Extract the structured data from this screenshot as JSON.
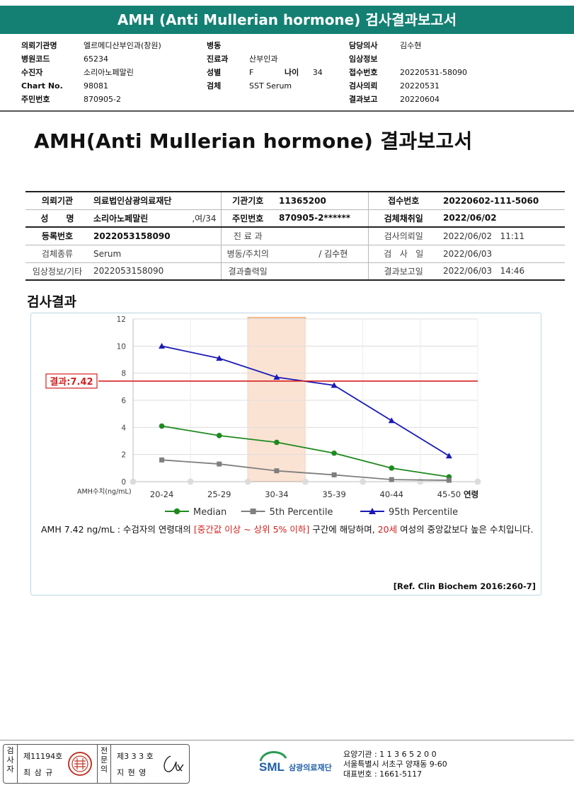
{
  "banner_title": "AMH (Anti Mullerian hormone) 검사결과보고서",
  "header": {
    "col1": [
      {
        "k": "의뢰기관명",
        "v": "엘르메디산부인과(창원)"
      },
      {
        "k": "병원코드",
        "v": "65234"
      },
      {
        "k": "수진자",
        "v": "소리아노페말린"
      },
      {
        "k": "Chart No.",
        "v": "98081"
      },
      {
        "k": "주민번호",
        "v": "870905-2"
      }
    ],
    "col2": [
      {
        "k": "병동",
        "v": ""
      },
      {
        "k": "진료과",
        "v": "산부인과"
      },
      {
        "k": "성별",
        "v": "F"
      },
      {
        "k": "검체",
        "v": "SST Serum"
      }
    ],
    "age_label": "나이",
    "age_value": "34",
    "col3": [
      {
        "k": "담당의사",
        "v": "김수현"
      },
      {
        "k": "임상정보",
        "v": ""
      },
      {
        "k": "접수번호",
        "v": "20220531-58090"
      },
      {
        "k": "검사의뢰",
        "v": "20220531"
      },
      {
        "k": "결과보고",
        "v": "20220604"
      }
    ]
  },
  "report_title": "AMH(Anti Mullerian hormone) 결과보고서",
  "table": {
    "r1": {
      "l1": "의뢰기관",
      "v1": "의료법인삼광의료재단",
      "l2": "기관기호",
      "v2": "11365200",
      "l3": "접수번호",
      "v3": "20220602-111-5060"
    },
    "r2": {
      "l1": "성      명",
      "v1": "소리아노페말린",
      "v1b": ",여/34",
      "l2": "주민번호",
      "v2": "870905-2******",
      "l3": "검체채취일",
      "v3": "2022/06/02"
    },
    "r3": {
      "l1": "등록번호",
      "v1": "2022053158090",
      "l2": "진 료 과",
      "v2": "",
      "l3": "검사의뢰일",
      "v3": "2022/06/02   11:11"
    },
    "r4": {
      "l1": "검체종류",
      "v1": "Serum",
      "l2": "병동/주치의",
      "v2": "/ 김수현",
      "l3": "검   사   일",
      "v3": "2022/06/03"
    },
    "r5": {
      "l1": "임상정보/기타",
      "v1": "2022053158090",
      "l2": "결과출력일",
      "v2": "",
      "l3": "결과보고일",
      "v3": "2022/06/03   14:46"
    }
  },
  "section_title": "검사결과",
  "chart_data": {
    "type": "line",
    "categories": [
      "20-24",
      "25-29",
      "30-34",
      "35-39",
      "40-44",
      "45-50"
    ],
    "x_unit": "연령",
    "ylabel": "AMH수치(ng/mL)",
    "ylim": [
      0,
      12
    ],
    "yticks": [
      0,
      2,
      4,
      6,
      8,
      10,
      12
    ],
    "grid": true,
    "legend_position": "bottom",
    "highlight_category": "30-34",
    "result_line": {
      "value": 7.42,
      "label": "결과:7.42",
      "color": "#d42020"
    },
    "series": [
      {
        "name": "Median",
        "color": "#1e8a1e",
        "marker": "circle",
        "values": [
          4.1,
          3.4,
          2.9,
          2.1,
          1.0,
          0.35
        ]
      },
      {
        "name": "5th Percentile",
        "color": "#7f7f7f",
        "marker": "square",
        "values": [
          1.6,
          1.3,
          0.8,
          0.5,
          0.15,
          0.1
        ]
      },
      {
        "name": "95th Percentile",
        "color": "#1a1ab4",
        "marker": "triangle",
        "values": [
          10.0,
          9.1,
          7.7,
          7.1,
          4.5,
          1.9
        ]
      }
    ]
  },
  "comment": {
    "p1": "AMH  7.42 ng/mL : 수검자의 연령대의 ",
    "r1": "[중간값 이상 ~ 상위 5% 이하]",
    "p2": "  구간에 해당하며, ",
    "r2": "20세",
    "p3": " 여성의 중앙값보다 높은 수치입니다."
  },
  "reference": "[Ref. Clin Biochem 2016:260-7]",
  "footer": {
    "sign1_vlabel": "검사자",
    "sign1_no": "제11194호",
    "sign1_name": "최 삼 규",
    "sign2_vlabel": "전문의",
    "sign2_no": "제3 3 3 호",
    "sign2_name": "지 현 영",
    "logo_text": "SML",
    "org_name": "삼광의료재단",
    "addr1": "요양기관 : 1 1 3 6 5 2 0 0",
    "addr2": "서울특별시 서초구 양재동 9-60",
    "addr3": "대표번호 : 1661-5117",
    "colors": {
      "banner": "#138073",
      "logo_blue": "#1f5fa8",
      "logo_green": "#2a9a55",
      "stamp": "#c0392b"
    }
  }
}
